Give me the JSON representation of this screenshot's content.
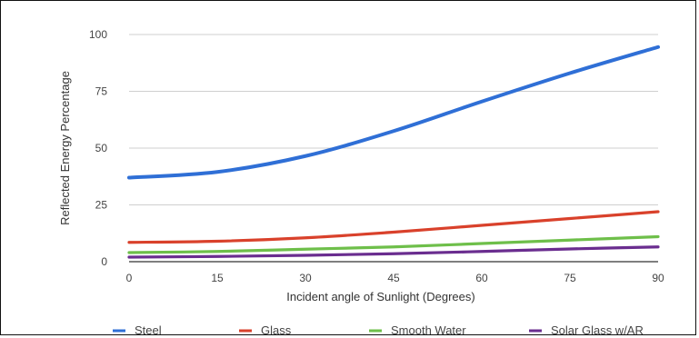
{
  "chart_data": {
    "type": "line",
    "xlabel": "Incident angle of Sunlight (Degrees)",
    "ylabel": "Reflected Energy Percentage",
    "x": [
      0,
      15,
      30,
      45,
      60,
      75,
      90
    ],
    "x_ticks": [
      "0",
      "15",
      "30",
      "45",
      "60",
      "75",
      "90"
    ],
    "y_ticks": [
      "0",
      "25",
      "50",
      "75",
      "100"
    ],
    "xlim": [
      0,
      90
    ],
    "ylim": [
      0,
      100
    ],
    "grid": "horizontal",
    "legend_position": "bottom",
    "series": [
      {
        "name": "Steel",
        "color": "#2f6fd6",
        "values": [
          37,
          39.5,
          46.5,
          57.5,
          70.5,
          83,
          94.5
        ]
      },
      {
        "name": "Glass",
        "color": "#d9412b",
        "values": [
          8.5,
          9,
          10.5,
          13,
          16,
          19,
          22
        ]
      },
      {
        "name": "Smooth Water",
        "color": "#6ebf4a",
        "values": [
          4,
          4.5,
          5.5,
          6.5,
          8,
          9.5,
          11
        ]
      },
      {
        "name": "Solar Glass w/AR",
        "color": "#6a2d8f",
        "values": [
          2,
          2.3,
          2.8,
          3.5,
          4.5,
          5.6,
          6.5
        ]
      }
    ]
  }
}
